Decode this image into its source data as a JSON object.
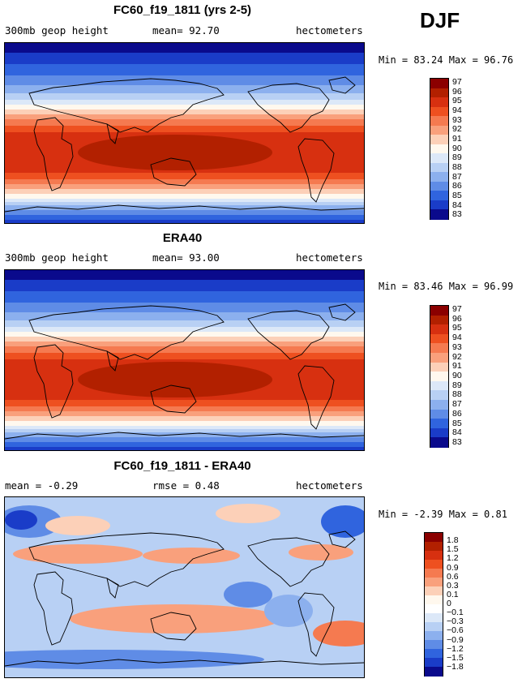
{
  "season": "DJF",
  "chart_data": [
    {
      "type": "heatmap",
      "title": "FC60_f19_1811 (yrs 2-5)",
      "left_label": "300mb geop height",
      "stat_label": "mean=  92.70",
      "units": "hectometers",
      "minmax": "Min =  83.24 Max =  96.76",
      "field_min": 83.24,
      "field_max": 96.76,
      "mean": 92.7,
      "colorbar_labels": [
        "97",
        "96",
        "95",
        "94",
        "93",
        "92",
        "91",
        "90",
        "89",
        "88",
        "87",
        "86",
        "85",
        "84",
        "83"
      ],
      "colorbar_colors": [
        "#8b0000",
        "#b22000",
        "#d73010",
        "#ee5020",
        "#f57a50",
        "#f9a07c",
        "#fcd0b8",
        "#fff8ee",
        "#dce8f8",
        "#b8d0f4",
        "#8cb0ee",
        "#5f8ce6",
        "#3064de",
        "#1a3cc8",
        "#0a0a8c"
      ]
    },
    {
      "type": "heatmap",
      "title": "ERA40",
      "left_label": "300mb geop height",
      "stat_label": "mean=  93.00",
      "units": "hectometers",
      "minmax": "Min =  83.46 Max =  96.99",
      "field_min": 83.46,
      "field_max": 96.99,
      "mean": 93.0,
      "colorbar_labels": [
        "97",
        "96",
        "95",
        "94",
        "93",
        "92",
        "91",
        "90",
        "89",
        "88",
        "87",
        "86",
        "85",
        "84",
        "83"
      ],
      "colorbar_colors": [
        "#8b0000",
        "#b22000",
        "#d73010",
        "#ee5020",
        "#f57a50",
        "#f9a07c",
        "#fcd0b8",
        "#fff8ee",
        "#dce8f8",
        "#b8d0f4",
        "#8cb0ee",
        "#5f8ce6",
        "#3064de",
        "#1a3cc8",
        "#0a0a8c"
      ]
    },
    {
      "type": "heatmap",
      "title": "FC60_f19_1811 - ERA40",
      "left_label": "mean =  -0.29",
      "stat_label": "rmse =   0.48",
      "units": "hectometers",
      "minmax": "Min =  -2.39 Max =   0.81",
      "field_min": -2.39,
      "field_max": 0.81,
      "mean": -0.29,
      "rmse": 0.48,
      "colorbar_labels": [
        "1.8",
        "1.5",
        "1.2",
        "0.9",
        "0.6",
        "0.3",
        "0.1",
        "0",
        "−0.1",
        "−0.3",
        "−0.6",
        "−0.9",
        "−1.2",
        "−1.5",
        "−1.8"
      ],
      "colorbar_colors": [
        "#8b0000",
        "#b22000",
        "#d73010",
        "#ee5020",
        "#f57a50",
        "#f9a07c",
        "#fcd0b8",
        "#fff8ee",
        "#ffffff",
        "#dce8f8",
        "#b8d0f4",
        "#8cb0ee",
        "#5f8ce6",
        "#3064de",
        "#1a3cc8",
        "#0a0a8c"
      ]
    }
  ]
}
